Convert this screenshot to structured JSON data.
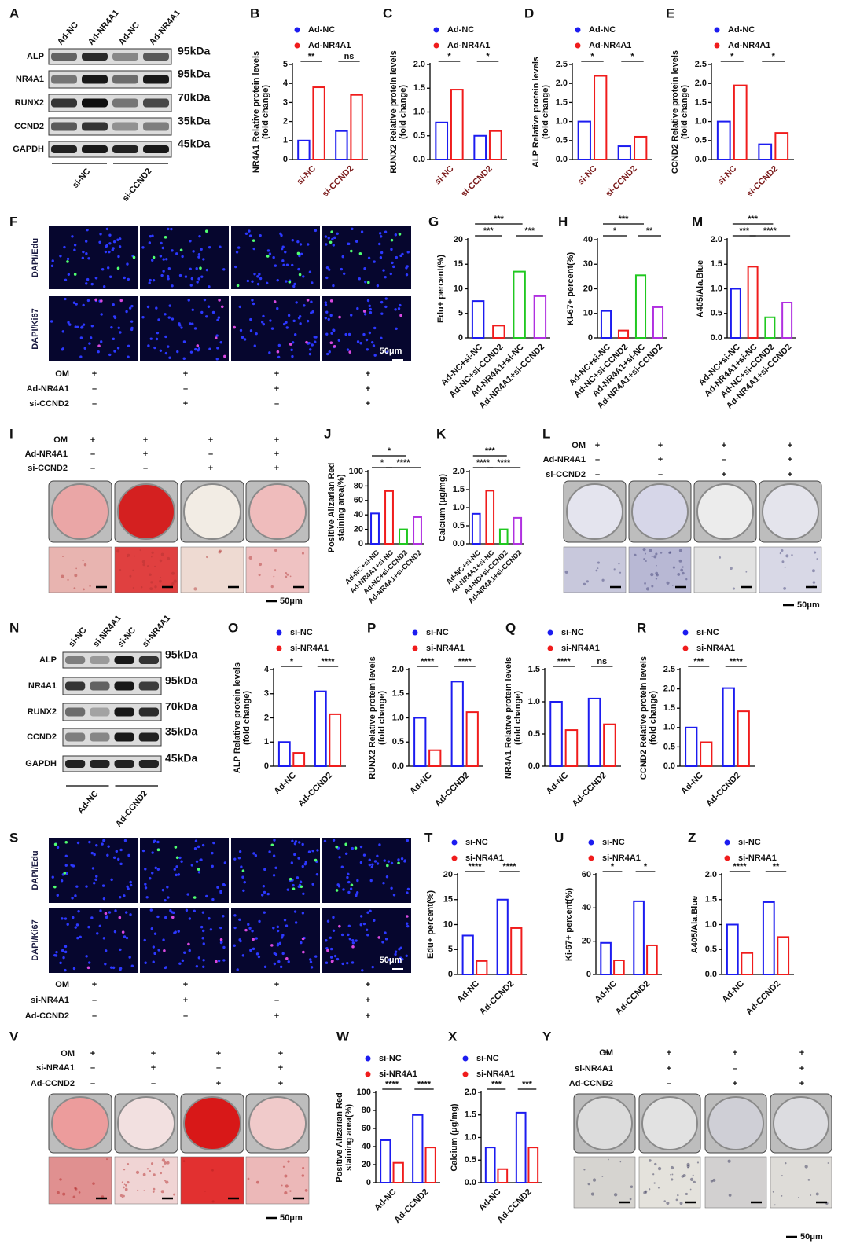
{
  "chart_data": [
    {
      "type": "bar",
      "panel": "B",
      "ylabel": [
        "NR4A1 Relative protein levels",
        "(fold change)"
      ],
      "categories": [
        "si-NC",
        "si-CCND2"
      ],
      "category_color": "#7a1a1a",
      "series": [
        {
          "name": "Ad-NC",
          "color": "#1c1cf0",
          "values": [
            1.0,
            1.5
          ]
        },
        {
          "name": "Ad-NR4A1",
          "color": "#f01c1c",
          "values": [
            3.8,
            3.4
          ]
        }
      ],
      "ylim": [
        0,
        5
      ],
      "yticks": [
        0,
        1,
        2,
        3,
        4,
        5
      ],
      "annotations": [
        "**",
        "ns"
      ]
    },
    {
      "type": "bar",
      "panel": "C",
      "ylabel": [
        "RUNX2 Relative protein levels",
        "(fold change)"
      ],
      "categories": [
        "si-NC",
        "si-CCND2"
      ],
      "category_color": "#7a1a1a",
      "series": [
        {
          "name": "Ad-NC",
          "color": "#1c1cf0",
          "values": [
            0.78,
            0.5
          ]
        },
        {
          "name": "Ad-NR4A1",
          "color": "#f01c1c",
          "values": [
            1.47,
            0.6
          ]
        }
      ],
      "ylim": [
        0,
        2
      ],
      "yticks": [
        {
          "value": 0,
          "label": "0.0"
        },
        0.5,
        {
          "value": 1,
          "label": "1.0"
        },
        1.5,
        {
          "value": 2,
          "label": "2.0"
        }
      ],
      "annotations": [
        "*",
        "*"
      ]
    },
    {
      "type": "bar",
      "panel": "D",
      "ylabel": [
        "ALP Relative protein levels",
        "(fold change)"
      ],
      "categories": [
        "si-NC",
        "si-CCND2"
      ],
      "category_color": "#7a1a1a",
      "series": [
        {
          "name": "Ad-NC",
          "color": "#1c1cf0",
          "values": [
            1.0,
            0.35
          ]
        },
        {
          "name": "Ad-NR4A1",
          "color": "#f01c1c",
          "values": [
            2.2,
            0.6
          ]
        }
      ],
      "ylim": [
        0,
        2.5
      ],
      "yticks": [
        {
          "value": 0,
          "label": "0.0"
        },
        0.5,
        {
          "value": 1,
          "label": "1.0"
        },
        1.5,
        {
          "value": 2,
          "label": "2.0"
        },
        2.5
      ],
      "annotations": [
        "*",
        "*"
      ]
    },
    {
      "type": "bar",
      "panel": "E",
      "ylabel": [
        "CCND2 Relative protein levels",
        "(fold change)"
      ],
      "categories": [
        "si-NC",
        "si-CCND2"
      ],
      "category_color": "#7a1a1a",
      "series": [
        {
          "name": "Ad-NC",
          "color": "#1c1cf0",
          "values": [
            1.0,
            0.4
          ]
        },
        {
          "name": "Ad-NR4A1",
          "color": "#f01c1c",
          "values": [
            1.95,
            0.7
          ]
        }
      ],
      "ylim": [
        0,
        2.5
      ],
      "yticks": [
        {
          "value": 0,
          "label": "0.0"
        },
        0.5,
        {
          "value": 1,
          "label": "1.0"
        },
        1.5,
        {
          "value": 2,
          "label": "2.0"
        },
        2.5
      ],
      "annotations": [
        "*",
        "*"
      ]
    },
    {
      "type": "bar",
      "panel": "G",
      "ylabel": [
        "Edu+ percent(%)"
      ],
      "categories": [
        "Ad-NC+si-NC",
        "Ad-NC+si-CCND2",
        "Ad-NR4A1+si-NC",
        "Ad-NR4A1+si-CCND2"
      ],
      "values": [
        7.5,
        2.5,
        13.5,
        8.5
      ],
      "colors": [
        "#1c1cf0",
        "#f01c1c",
        "#20c820",
        "#b030e0"
      ],
      "ylim": [
        0,
        20
      ],
      "yticks": [
        0,
        5,
        10,
        15,
        20
      ],
      "annotations": [
        "***",
        "***",
        "***"
      ]
    },
    {
      "type": "bar",
      "panel": "H",
      "ylabel": [
        "Ki-67+ percent(%)"
      ],
      "categories": [
        "Ad-NC+si-NC",
        "Ad-NC+si-CCND2",
        "Ad-NR4A1+si-NC",
        "Ad-NR4A1+si-CCND2"
      ],
      "values": [
        11,
        3,
        25.5,
        12.5
      ],
      "colors": [
        "#1c1cf0",
        "#f01c1c",
        "#20c820",
        "#b030e0"
      ],
      "ylim": [
        0,
        40
      ],
      "yticks": [
        0,
        10,
        20,
        30,
        40
      ],
      "annotations": [
        "***",
        "*",
        "**"
      ]
    },
    {
      "type": "bar",
      "panel": "M",
      "ylabel": [
        "A405/Ala.Blue"
      ],
      "categories": [
        "Ad-NC+si-NC",
        "Ad-NR4A1+si-NC",
        "Ad-NC+si-CCND2",
        "Ad-NR4A1+si-CCND2"
      ],
      "values": [
        1.0,
        1.45,
        0.42,
        0.72
      ],
      "colors": [
        "#1c1cf0",
        "#f01c1c",
        "#20c820",
        "#b030e0"
      ],
      "ylim": [
        0,
        2
      ],
      "yticks": [
        {
          "value": 0,
          "label": "0.0"
        },
        0.5,
        {
          "value": 1,
          "label": "1.0"
        },
        1.5,
        {
          "value": 2,
          "label": "2.0"
        }
      ],
      "annotations": [
        "***",
        "***",
        "****"
      ]
    },
    {
      "type": "bar",
      "panel": "J",
      "ylabel": [
        "Positive Alizarian Red",
        "staining area(%)"
      ],
      "categories": [
        "Ad-NC+si-NC",
        "Ad-NR4A1+si-NC",
        "Ad-NC+si-CCND2",
        "Ad-NR4A1+si-CCND2"
      ],
      "values": [
        42,
        73,
        20,
        37
      ],
      "colors": [
        "#1c1cf0",
        "#f01c1c",
        "#20c820",
        "#b030e0"
      ],
      "ylim": [
        0,
        100
      ],
      "yticks": [
        0,
        20,
        40,
        60,
        80,
        100
      ],
      "annotations": [
        "*",
        "*",
        "****"
      ]
    },
    {
      "type": "bar",
      "panel": "K",
      "ylabel": [
        "Calcium (μg/mg)"
      ],
      "categories": [
        "Ad-NC+si-NC",
        "Ad-NR4A1+si-NC",
        "Ad-NC+si-CCND2",
        "Ad-NR4A1+si-CCND2"
      ],
      "values": [
        0.83,
        1.47,
        0.4,
        0.72
      ],
      "colors": [
        "#1c1cf0",
        "#f01c1c",
        "#20c820",
        "#b030e0"
      ],
      "ylim": [
        0,
        2
      ],
      "yticks": [
        {
          "value": 0,
          "label": "0.0"
        },
        0.5,
        {
          "value": 1,
          "label": "1.0"
        },
        1.5,
        {
          "value": 2,
          "label": "2.0"
        }
      ],
      "annotations": [
        "***",
        "****",
        "****"
      ]
    },
    {
      "type": "bar",
      "panel": "O",
      "ylabel": [
        "ALP Relative protein levels",
        "(fold change)"
      ],
      "categories": [
        "Ad-NC",
        "Ad-CCND2"
      ],
      "series": [
        {
          "name": "si-NC",
          "color": "#1c1cf0",
          "values": [
            1.0,
            3.1
          ]
        },
        {
          "name": "si-NR4A1",
          "color": "#f01c1c",
          "values": [
            0.55,
            2.15
          ]
        }
      ],
      "ylim": [
        0,
        4
      ],
      "yticks": [
        0,
        1,
        2,
        3,
        4
      ],
      "annotations": [
        "*",
        "****"
      ]
    },
    {
      "type": "bar",
      "panel": "P",
      "ylabel": [
        "RUNX2 Relative protein levels",
        "(fold change)"
      ],
      "categories": [
        "Ad-NC",
        "Ad-CCND2"
      ],
      "series": [
        {
          "name": "si-NC",
          "color": "#1c1cf0",
          "values": [
            1.0,
            1.75
          ]
        },
        {
          "name": "si-NR4A1",
          "color": "#f01c1c",
          "values": [
            0.33,
            1.12
          ]
        }
      ],
      "ylim": [
        0,
        2
      ],
      "yticks": [
        {
          "value": 0,
          "label": "0.0"
        },
        0.5,
        {
          "value": 1,
          "label": "1.0"
        },
        1.5,
        {
          "value": 2,
          "label": "2.0"
        }
      ],
      "annotations": [
        "****",
        "****"
      ]
    },
    {
      "type": "bar",
      "panel": "Q",
      "ylabel": [
        "NR4A1 Relative protein levels",
        "(fold change)"
      ],
      "categories": [
        "Ad-NC",
        "Ad-CCND2"
      ],
      "series": [
        {
          "name": "si-NC",
          "color": "#1c1cf0",
          "values": [
            1.0,
            1.05
          ]
        },
        {
          "name": "si-NR4A1",
          "color": "#f01c1c",
          "values": [
            0.56,
            0.65
          ]
        }
      ],
      "ylim": [
        0,
        1.5
      ],
      "yticks": [
        {
          "value": 0,
          "label": "0.0"
        },
        0.5,
        {
          "value": 1,
          "label": "1.0"
        },
        1.5
      ],
      "annotations": [
        "****",
        "ns"
      ]
    },
    {
      "type": "bar",
      "panel": "R",
      "ylabel": [
        "CCND2 Relative protein levels",
        "(fold change)"
      ],
      "categories": [
        "Ad-NC",
        "Ad-CCND2"
      ],
      "series": [
        {
          "name": "si-NC",
          "color": "#1c1cf0",
          "values": [
            1.0,
            2.02
          ]
        },
        {
          "name": "si-NR4A1",
          "color": "#f01c1c",
          "values": [
            0.62,
            1.42
          ]
        }
      ],
      "ylim": [
        0,
        2.5
      ],
      "yticks": [
        {
          "value": 0,
          "label": "0.0"
        },
        0.5,
        {
          "value": 1,
          "label": "1.0"
        },
        1.5,
        {
          "value": 2,
          "label": "2.0"
        },
        2.5
      ],
      "annotations": [
        "***",
        "****"
      ]
    },
    {
      "type": "bar",
      "panel": "T",
      "ylabel": [
        "Edu+ percent(%)"
      ],
      "categories": [
        "Ad-NC",
        "Ad-CCND2"
      ],
      "series": [
        {
          "name": "si-NC",
          "color": "#1c1cf0",
          "values": [
            7.8,
            15
          ]
        },
        {
          "name": "si-NR4A1",
          "color": "#f01c1c",
          "values": [
            2.7,
            9.3
          ]
        }
      ],
      "ylim": [
        0,
        20
      ],
      "yticks": [
        0,
        5,
        10,
        15,
        20
      ],
      "annotations": [
        "****",
        "****"
      ]
    },
    {
      "type": "bar",
      "panel": "U",
      "ylabel": [
        "Ki-67+ percent(%)"
      ],
      "categories": [
        "Ad-NC",
        "Ad-CCND2"
      ],
      "series": [
        {
          "name": "si-NC",
          "color": "#1c1cf0",
          "values": [
            19,
            44
          ]
        },
        {
          "name": "si-NR4A1",
          "color": "#f01c1c",
          "values": [
            8.5,
            17.5
          ]
        }
      ],
      "ylim": [
        0,
        60
      ],
      "yticks": [
        0,
        20,
        40,
        60
      ],
      "annotations": [
        "*",
        "*"
      ]
    },
    {
      "type": "bar",
      "panel": "Z",
      "ylabel": [
        "A405/Ala.Blue"
      ],
      "categories": [
        "Ad-NC",
        "Ad-CCND2"
      ],
      "series": [
        {
          "name": "si-NC",
          "color": "#1c1cf0",
          "values": [
            1.0,
            1.45
          ]
        },
        {
          "name": "si-NR4A1",
          "color": "#f01c1c",
          "values": [
            0.43,
            0.75
          ]
        }
      ],
      "ylim": [
        0,
        2
      ],
      "yticks": [
        {
          "value": 0,
          "label": "0.0"
        },
        0.5,
        {
          "value": 1,
          "label": "1.0"
        },
        1.5,
        {
          "value": 2,
          "label": "2.0"
        }
      ],
      "annotations": [
        "****",
        "**"
      ]
    },
    {
      "type": "bar",
      "panel": "W",
      "ylabel": [
        "Positive Alizarian Red",
        "staining area(%)"
      ],
      "categories": [
        "Ad-NC",
        "Ad-CCND2"
      ],
      "series": [
        {
          "name": "si-NC",
          "color": "#1c1cf0",
          "values": [
            47,
            75
          ]
        },
        {
          "name": "si-NR4A1",
          "color": "#f01c1c",
          "values": [
            22,
            39
          ]
        }
      ],
      "ylim": [
        0,
        100
      ],
      "yticks": [
        0,
        20,
        40,
        60,
        80,
        100
      ],
      "annotations": [
        "****",
        "****"
      ]
    },
    {
      "type": "bar",
      "panel": "X",
      "ylabel": [
        "Calcium (μg/mg)"
      ],
      "categories": [
        "Ad-NC",
        "Ad-CCND2"
      ],
      "series": [
        {
          "name": "si-NC",
          "color": "#1c1cf0",
          "values": [
            0.78,
            1.55
          ]
        },
        {
          "name": "si-NR4A1",
          "color": "#f01c1c",
          "values": [
            0.3,
            0.78
          ]
        }
      ],
      "ylim": [
        0,
        2
      ],
      "yticks": [
        {
          "value": 0,
          "label": "0.0"
        },
        0.5,
        {
          "value": 1,
          "label": "1.0"
        },
        1.5,
        {
          "value": 2,
          "label": "2.0"
        }
      ],
      "annotations": [
        "***",
        "***"
      ]
    }
  ],
  "blots": [
    {
      "panel": "A",
      "lanes": [
        "Ad-NC",
        "Ad-NR4A1",
        "Ad-NC",
        "Ad-NR4A1"
      ],
      "proteins": [
        "ALP",
        "NR4A1",
        "RUNX2",
        "CCND2",
        "GAPDH"
      ],
      "sizes": [
        "95kDa",
        "95kDa",
        "70kDa",
        "35kDa",
        "45kDa"
      ],
      "groups": [
        "si-NC",
        "si-CCND2"
      ]
    },
    {
      "panel": "N",
      "lanes": [
        "si-NC",
        "si-NR4A1",
        "si-NC",
        "si-NR4A1"
      ],
      "proteins": [
        "ALP",
        "NR4A1",
        "RUNX2",
        "CCND2",
        "GAPDH"
      ],
      "sizes": [
        "95kDa",
        "95kDa",
        "70kDa",
        "35kDa",
        "45kDa"
      ],
      "groups": [
        "Ad-NC",
        "Ad-CCND2"
      ]
    }
  ],
  "image_panels": [
    {
      "panel": "F",
      "row_labels": [
        "DAPI/Edu",
        "DAPI/Ki67"
      ],
      "scale": "50μm",
      "treatments": [
        {
          "label": "OM",
          "signs": [
            "+",
            "+",
            "+",
            "+"
          ]
        },
        {
          "label": "Ad-NR4A1",
          "signs": [
            "–",
            "–",
            "+",
            "+"
          ]
        },
        {
          "label": "si-CCND2",
          "signs": [
            "–",
            "+",
            "–",
            "+"
          ]
        }
      ]
    },
    {
      "panel": "I",
      "scale": "50μm",
      "treatments": [
        {
          "label": "OM",
          "signs": [
            "+",
            "+",
            "+",
            "+"
          ]
        },
        {
          "label": "Ad-NR4A1",
          "signs": [
            "–",
            "+",
            "–",
            "+"
          ]
        },
        {
          "label": "si-CCND2",
          "signs": [
            "–",
            "–",
            "+",
            "+"
          ]
        }
      ]
    },
    {
      "panel": "L",
      "scale": "50μm",
      "treatments": [
        {
          "label": "OM",
          "signs": [
            "+",
            "+",
            "+",
            "+"
          ]
        },
        {
          "label": "Ad-NR4A1",
          "signs": [
            "–",
            "+",
            "–",
            "+"
          ]
        },
        {
          "label": "si-CCND2",
          "signs": [
            "–",
            "–",
            "+",
            "+"
          ]
        }
      ]
    },
    {
      "panel": "S",
      "row_labels": [
        "DAPI/Edu",
        "DAPI/Ki67"
      ],
      "scale": "50μm",
      "treatments": [
        {
          "label": "OM",
          "signs": [
            "+",
            "+",
            "+",
            "+"
          ]
        },
        {
          "label": "si-NR4A1",
          "signs": [
            "–",
            "+",
            "–",
            "+"
          ]
        },
        {
          "label": "Ad-CCND2",
          "signs": [
            "–",
            "–",
            "+",
            "+"
          ]
        }
      ]
    },
    {
      "panel": "V",
      "scale": "50μm",
      "treatments": [
        {
          "label": "OM",
          "signs": [
            "+",
            "+",
            "+",
            "+"
          ]
        },
        {
          "label": "si-NR4A1",
          "signs": [
            "–",
            "+",
            "–",
            "+"
          ]
        },
        {
          "label": "Ad-CCND2",
          "signs": [
            "–",
            "–",
            "+",
            "+"
          ]
        }
      ]
    },
    {
      "panel": "Y",
      "scale": "50μm",
      "treatments": [
        {
          "label": "OM",
          "signs": [
            "+",
            "+",
            "+",
            "+"
          ]
        },
        {
          "label": "si-NR4A1",
          "signs": [
            "–",
            "+",
            "–",
            "+"
          ]
        },
        {
          "label": "Ad-CCND2",
          "signs": [
            "–",
            "–",
            "+",
            "+"
          ]
        }
      ]
    }
  ]
}
